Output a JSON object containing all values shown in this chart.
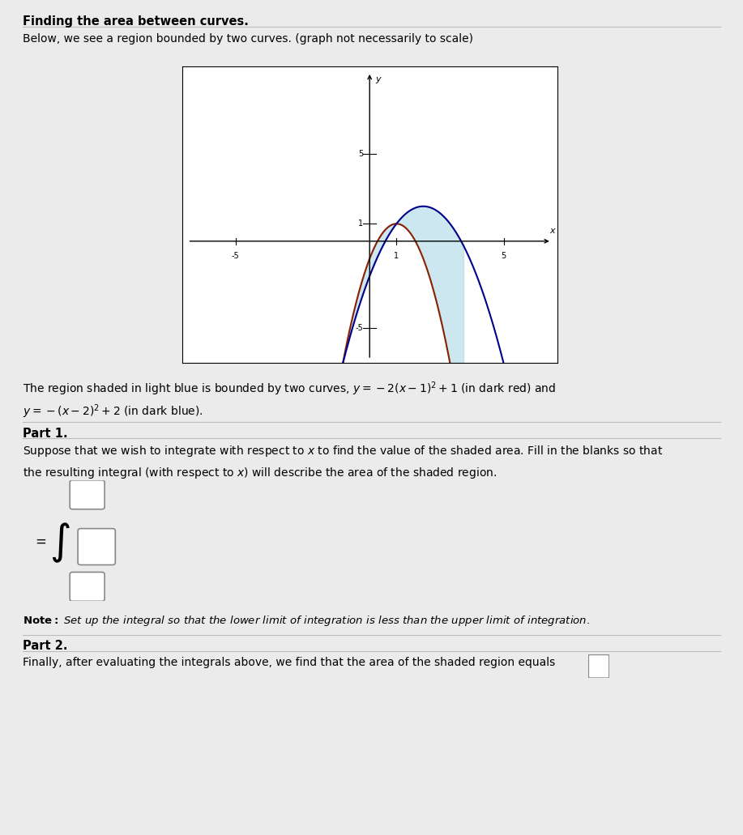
{
  "title_bold": "Finding the area between curves.",
  "subtitle": "Below, we see a region bounded by two curves. (graph not necessarily to scale)",
  "curve1_color": "#8B2000",
  "curve2_color": "#00008B",
  "fill_color": "#ADD8E6",
  "fill_alpha": 0.6,
  "x_range": [
    -7,
    7
  ],
  "y_range": [
    -7,
    10
  ],
  "x_ticks": [
    -5,
    1,
    5
  ],
  "y_ticks": [
    -5,
    1,
    5
  ],
  "axis_label_x": "x",
  "axis_label_y": "y",
  "bg_color": "#EBEBEB",
  "plot_bg_color": "#FFFFFF",
  "desc_line1": "The region shaded in light blue is bounded by two curves, $y = -2(x-1)^2+1$ (in dark red) and",
  "desc_line2": "$y = -(x-2)^2+2$ (in dark blue).",
  "part1_title": "Part 1.",
  "part1_text1": "Suppose that we wish to integrate with respect to $x$ to find the value of the shaded area. Fill in the blanks so that",
  "part1_text2": "the resulting integral (with respect to $x$) will describe the area of the shaded region.",
  "note_bold": "Note:",
  "note_italic": " Set up the integral so that the lower limit of integration is less than the upper limit of integration.",
  "part2_title": "Part 2.",
  "part2_text": "Finally, after evaluating the integrals above, we find that the area of the shaded region equals"
}
